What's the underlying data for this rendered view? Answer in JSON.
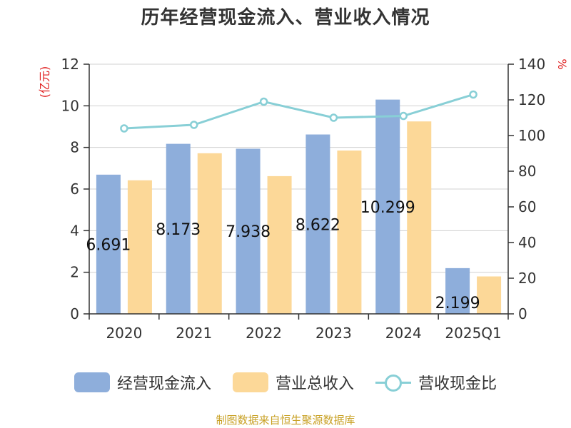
{
  "chart_data": {
    "type": "bar",
    "title": "历年经营现金流入、营业收入情况",
    "categories": [
      "2020",
      "2021",
      "2022",
      "2023",
      "2024",
      "2025Q1"
    ],
    "series": [
      {
        "name": "经营现金流入",
        "type": "bar",
        "axis": "left",
        "color": "#8eaedb",
        "values": [
          6.691,
          8.173,
          7.938,
          8.622,
          10.299,
          2.199
        ]
      },
      {
        "name": "营业总收入",
        "type": "bar",
        "axis": "left",
        "color": "#fcd898",
        "values": [
          6.42,
          7.72,
          6.62,
          7.85,
          9.25,
          1.8
        ]
      },
      {
        "name": "营收现金比",
        "type": "line",
        "axis": "right",
        "color": "#88cfd6",
        "values": [
          104,
          106,
          119,
          110,
          111,
          123
        ]
      }
    ],
    "data_labels": [
      "6.691",
      "8.173",
      "7.938",
      "8.622",
      "10.299",
      "2.199"
    ],
    "y_left": {
      "label": "(亿元)",
      "ylim": [
        0,
        12
      ],
      "ticks": [
        "0",
        "2",
        "4",
        "6",
        "8",
        "10",
        "12"
      ]
    },
    "y_right": {
      "label": "%",
      "ylim": [
        0,
        140
      ],
      "ticks": [
        "0",
        "20",
        "40",
        "60",
        "80",
        "100",
        "120",
        "140"
      ]
    },
    "grid": true,
    "legend": "bottom",
    "source": "制图数据来自恒生聚源数据库"
  }
}
